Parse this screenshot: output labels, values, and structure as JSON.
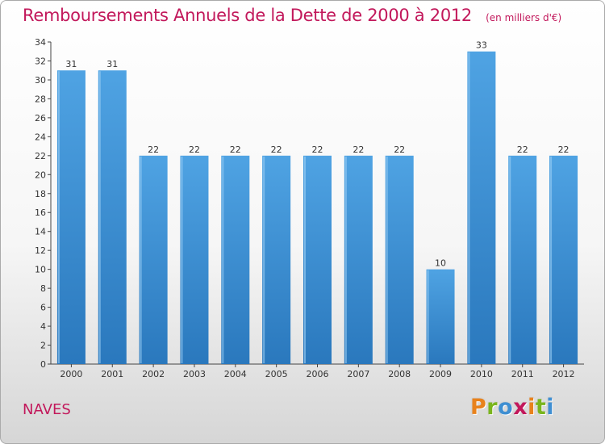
{
  "chart_data": {
    "type": "bar",
    "title": "Remboursements Annuels de la Dette de 2000 à 2012",
    "subtitle": "(en milliers d'€)",
    "categories": [
      "2000",
      "2001",
      "2002",
      "2003",
      "2004",
      "2005",
      "2006",
      "2007",
      "2008",
      "2009",
      "2010",
      "2011",
      "2012"
    ],
    "values": [
      31,
      31,
      22,
      22,
      22,
      22,
      22,
      22,
      22,
      10,
      33,
      22,
      22
    ],
    "xlabel": "",
    "ylabel": "",
    "ylim": [
      0,
      34
    ],
    "yticks": [
      0,
      2,
      4,
      6,
      8,
      10,
      12,
      14,
      16,
      18,
      20,
      22,
      24,
      26,
      28,
      30,
      32,
      34
    ],
    "grid": false,
    "bar_color": "#4fa3e3",
    "bar_color_dark": "#2a78bd"
  },
  "footer": {
    "commune": "NAVES",
    "brand": "Proxiti",
    "brand_colors": [
      "#e8821c",
      "#7ab51d",
      "#3f8fd2",
      "#c2185b",
      "#e8821c",
      "#7ab51d",
      "#3f8fd2"
    ]
  },
  "colors": {
    "accent": "#c2185b"
  }
}
